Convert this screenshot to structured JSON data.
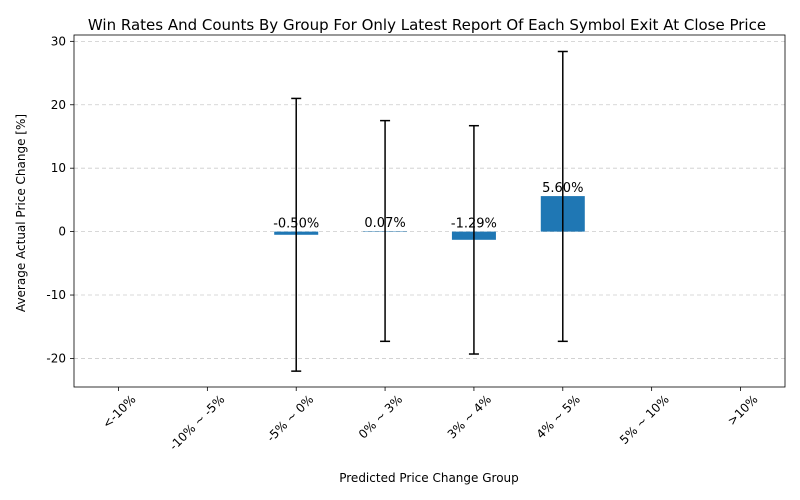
{
  "chart_data": {
    "type": "bar",
    "title": "Win Rates And Counts By Group For Only Latest Report Of Each Symbol Exit At Close Price",
    "xlabel": "Predicted Price Change Group",
    "ylabel": "Average Actual Price Change [%]",
    "categories": [
      "<-10%",
      "-10% ~ -5%",
      "-5% ~ 0%",
      "0% ~ 3%",
      "3% ~ 4%",
      "4% ~ 5%",
      "5% ~ 10%",
      ">10%"
    ],
    "values": [
      null,
      null,
      -0.5,
      0.07,
      -1.29,
      5.6,
      null,
      null
    ],
    "value_labels": [
      "",
      "",
      "-0.50%",
      "0.07%",
      "-1.29%",
      "5.60%",
      "",
      ""
    ],
    "error_low": [
      null,
      null,
      -22.0,
      -17.3,
      -19.3,
      -17.3,
      null,
      null
    ],
    "error_high": [
      null,
      null,
      21.0,
      17.5,
      16.7,
      28.4,
      null,
      null
    ],
    "yticks": [
      -20,
      -10,
      0,
      10,
      20,
      30
    ],
    "ylim": [
      -24.5,
      31
    ],
    "grid": "y-dashed",
    "bar_color": "#1f77b4"
  }
}
